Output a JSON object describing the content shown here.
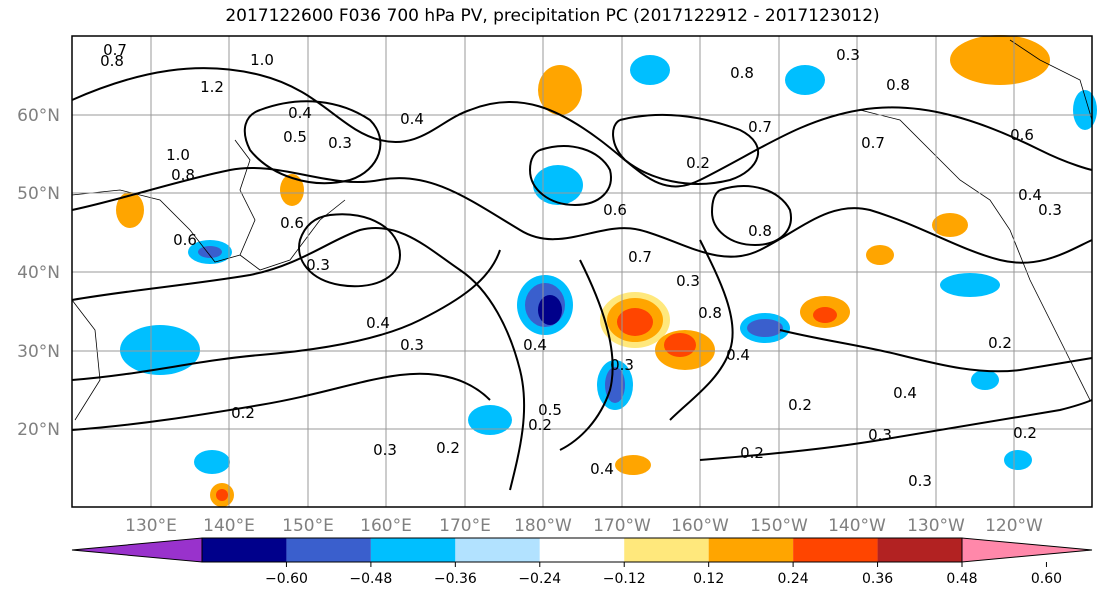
{
  "title": "2017122600 F036 700 hPa PV, precipitation PC (2017122912 - 2017123012)",
  "lat_labels": [
    "60°N",
    "50°N",
    "40°N",
    "30°N",
    "20°N"
  ],
  "lon_labels": [
    "130°E",
    "140°E",
    "150°E",
    "160°E",
    "170°E",
    "180°W",
    "170°W",
    "160°W",
    "150°W",
    "140°W",
    "130°W",
    "120°W"
  ],
  "colorbar": {
    "ticks": [
      "−0.60",
      "−0.48",
      "−0.36",
      "−0.24",
      "−0.12",
      "0.12",
      "0.24",
      "0.36",
      "0.48",
      "0.60"
    ],
    "colors": [
      "#9932cc",
      "#00008b",
      "#3a5fcd",
      "#00bfff",
      "#b2e2ff",
      "#ffffff",
      "#ffe87c",
      "#ffa500",
      "#ff4500",
      "#b22222",
      "#ff88aa"
    ]
  },
  "contour_labels": [
    "0.7",
    "0.8",
    "1.2",
    "1.0",
    "0.4",
    "0.5",
    "0.3",
    "1.0",
    "0.8",
    "0.6",
    "0.6",
    "0.3",
    "0.4",
    "0.4",
    "0.3",
    "0.2",
    "0.3",
    "0.2",
    "0.2",
    "0.4",
    "0.5",
    "0.3",
    "0.6",
    "0.7",
    "0.8",
    "0.4",
    "0.8",
    "0.3",
    "0.2",
    "0.8",
    "0.7",
    "0.3",
    "0.8",
    "0.7",
    "0.6",
    "0.4",
    "0.3",
    "0.4",
    "0.2",
    "0.2",
    "0.4",
    "0.3",
    "0.2",
    "0.3",
    "0.2"
  ]
}
